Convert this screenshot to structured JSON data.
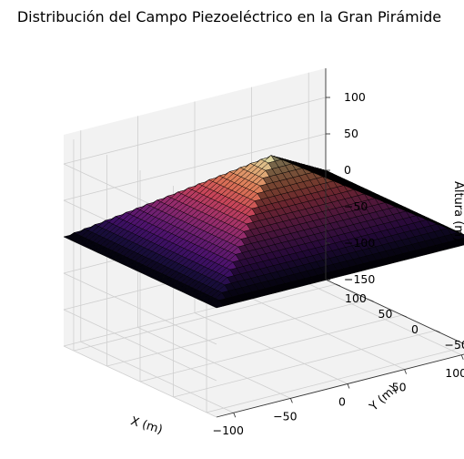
{
  "chart_data": {
    "type": "surface3d",
    "title": "Distribución del Campo Piezoeléctrico en la Gran Pirámide",
    "xlabel": "X (m)",
    "ylabel": "Y (m)",
    "zlabel": "Altura (m)",
    "xlim": [
      -115,
      115
    ],
    "ylim": [
      -115,
      115
    ],
    "zlim": [
      -150,
      140
    ],
    "xticks": [
      -100,
      -50,
      0,
      50,
      100
    ],
    "yticks": [
      -100,
      -50,
      0,
      50,
      100
    ],
    "zticks": [
      -150,
      -100,
      -50,
      0,
      50,
      100
    ],
    "xtick_labels": [
      "−100",
      "−50",
      "0",
      "50",
      "100"
    ],
    "ytick_labels": [
      "−100",
      "−50",
      "0",
      "50",
      "100"
    ],
    "ztick_labels": [
      "−150",
      "−100",
      "−50",
      "0",
      "50",
      "100"
    ],
    "surface": {
      "function": "z = peak - max(|x|, |y|)",
      "x_range": [
        -115,
        115
      ],
      "y_range": [
        -115,
        115
      ],
      "grid": 40,
      "peak": 115,
      "colormap": "magma"
    },
    "grid": true,
    "pane_color": "#f2f2f2",
    "edge_color": "#000000"
  }
}
